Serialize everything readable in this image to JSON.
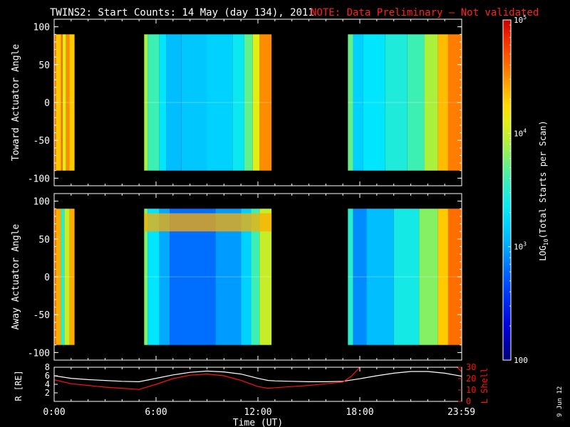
{
  "header": {
    "title": "TWINS2: Start Counts: 14 May (day 134), 2011",
    "note": "NOTE: Data Preliminary — Not validated"
  },
  "footer_date": "9 Jun 12",
  "colors": {
    "background": "#000000",
    "axes": "#ffffff",
    "note": "#ff2020",
    "r_line": "#ffffff",
    "lshell_line": "#ff1010"
  },
  "chart_data": [
    {
      "type": "heatmap",
      "panel": "top",
      "ylabel": "Toward Actuator Angle",
      "xlim": [
        0,
        24
      ],
      "ylim": [
        -110,
        110
      ],
      "yticks": [
        100,
        50,
        0,
        -50,
        -100
      ],
      "data_y_range": [
        -90,
        90
      ],
      "coverage_hours": [
        [
          0.0,
          1.2
        ],
        [
          5.3,
          12.8
        ],
        [
          17.3,
          24.0
        ]
      ],
      "mean_log_counts_by_segment": [
        {
          "start": 0.0,
          "end": 0.1,
          "log": 4.6
        },
        {
          "start": 0.1,
          "end": 0.4,
          "log": 4.3
        },
        {
          "start": 0.4,
          "end": 0.5,
          "log": 4.6
        },
        {
          "start": 0.5,
          "end": 0.7,
          "log": 4.1
        },
        {
          "start": 0.7,
          "end": 0.9,
          "log": 4.5
        },
        {
          "start": 0.9,
          "end": 1.2,
          "log": 4.3
        },
        {
          "start": 5.3,
          "end": 5.5,
          "log": 3.9
        },
        {
          "start": 5.5,
          "end": 6.2,
          "log": 3.6
        },
        {
          "start": 6.2,
          "end": 6.6,
          "log": 3.3
        },
        {
          "start": 6.6,
          "end": 7.5,
          "log": 3.1
        },
        {
          "start": 7.5,
          "end": 9.0,
          "log": 3.15
        },
        {
          "start": 9.0,
          "end": 10.5,
          "log": 3.2
        },
        {
          "start": 10.5,
          "end": 11.2,
          "log": 3.35
        },
        {
          "start": 11.2,
          "end": 11.7,
          "log": 3.7
        },
        {
          "start": 11.7,
          "end": 12.1,
          "log": 4.1
        },
        {
          "start": 12.1,
          "end": 12.8,
          "log": 4.5
        },
        {
          "start": 17.3,
          "end": 17.6,
          "log": 3.7
        },
        {
          "start": 17.6,
          "end": 18.2,
          "log": 3.2
        },
        {
          "start": 18.2,
          "end": 19.5,
          "log": 3.3
        },
        {
          "start": 19.5,
          "end": 20.8,
          "log": 3.45
        },
        {
          "start": 20.8,
          "end": 21.8,
          "log": 3.6
        },
        {
          "start": 21.8,
          "end": 22.6,
          "log": 3.9
        },
        {
          "start": 22.6,
          "end": 23.2,
          "log": 4.35
        },
        {
          "start": 23.2,
          "end": 24.0,
          "log": 4.55
        }
      ]
    },
    {
      "type": "heatmap",
      "panel": "middle",
      "ylabel": "Away Actuator Angle",
      "xlim": [
        0,
        24
      ],
      "ylim": [
        -110,
        110
      ],
      "yticks": [
        100,
        50,
        0,
        -50,
        -100
      ],
      "data_y_range": [
        -90,
        90
      ],
      "coverage_hours": [
        [
          0.0,
          1.2
        ],
        [
          5.3,
          12.8
        ],
        [
          17.3,
          24.0
        ]
      ],
      "mean_log_counts_by_segment": [
        {
          "start": 0.0,
          "end": 0.1,
          "log": 4.6
        },
        {
          "start": 0.1,
          "end": 0.4,
          "log": 4.4
        },
        {
          "start": 0.4,
          "end": 0.6,
          "log": 3.5
        },
        {
          "start": 0.6,
          "end": 0.9,
          "log": 4.0
        },
        {
          "start": 0.9,
          "end": 1.2,
          "log": 4.4
        },
        {
          "start": 5.3,
          "end": 5.5,
          "log": 3.8
        },
        {
          "start": 5.5,
          "end": 6.2,
          "log": 3.3
        },
        {
          "start": 6.2,
          "end": 6.8,
          "log": 3.0
        },
        {
          "start": 6.8,
          "end": 9.5,
          "log": 2.8
        },
        {
          "start": 9.5,
          "end": 11.0,
          "log": 2.95
        },
        {
          "start": 11.0,
          "end": 11.6,
          "log": 3.2
        },
        {
          "start": 11.6,
          "end": 12.1,
          "log": 3.6
        },
        {
          "start": 12.1,
          "end": 12.8,
          "log": 4.0
        },
        {
          "start": 17.3,
          "end": 17.6,
          "log": 3.5
        },
        {
          "start": 17.6,
          "end": 18.4,
          "log": 2.9
        },
        {
          "start": 18.4,
          "end": 20.0,
          "log": 3.1
        },
        {
          "start": 20.0,
          "end": 21.5,
          "log": 3.4
        },
        {
          "start": 21.5,
          "end": 22.6,
          "log": 3.8
        },
        {
          "start": 22.6,
          "end": 23.2,
          "log": 4.3
        },
        {
          "start": 23.2,
          "end": 24.0,
          "log": 4.6
        }
      ],
      "band_enhancement": {
        "y_center": 72,
        "half_width": 12,
        "hours": [
          5.3,
          12.8
        ],
        "peak_log": 4.4
      }
    },
    {
      "type": "line",
      "panel": "bottom",
      "ylabel_left": "R [RE]",
      "ylabel_right": "L Shell",
      "xlabel": "Time (UT)",
      "xlim": [
        0,
        24
      ],
      "ylim_left": [
        0,
        8
      ],
      "ylim_right": [
        0,
        30
      ],
      "yticks_left": [
        8,
        6,
        4,
        2
      ],
      "yticks_right": [
        30,
        20,
        10,
        0
      ],
      "right_tick_labels": [
        "30",
        "20",
        "10",
        "0"
      ],
      "xtick_labels": [
        {
          "h": 0,
          "label": "0:00"
        },
        {
          "h": 6,
          "label": "6:00"
        },
        {
          "h": 12,
          "label": "12:00"
        },
        {
          "h": 18,
          "label": "18:00"
        },
        {
          "h": 23.98,
          "label": "23:59"
        }
      ],
      "series": [
        {
          "name": "R",
          "axis": "left",
          "x": [
            0,
            1,
            2,
            3,
            4,
            5,
            6,
            7,
            8,
            9,
            10,
            11,
            12,
            12.6,
            13,
            14,
            15,
            16,
            17,
            18,
            19,
            20,
            21,
            22,
            23,
            24
          ],
          "y": [
            6.0,
            5.4,
            5.1,
            4.9,
            4.7,
            4.6,
            5.4,
            6.2,
            6.8,
            7.1,
            6.9,
            6.4,
            5.4,
            4.9,
            4.8,
            4.7,
            4.6,
            4.6,
            4.7,
            5.3,
            6.0,
            6.6,
            7.0,
            7.0,
            6.6,
            5.9
          ]
        },
        {
          "name": "L Shell",
          "axis": "right",
          "x": [
            0,
            1,
            2,
            3,
            4,
            5,
            6,
            7,
            8,
            9,
            10,
            11,
            12,
            12.6,
            13,
            14,
            15,
            16,
            17,
            17.5,
            18,
            18.4,
            23.4,
            23.8,
            24
          ],
          "y": [
            19.0,
            15.5,
            14.0,
            12.5,
            11.5,
            10.5,
            15.0,
            20.0,
            23.0,
            24.0,
            22.5,
            18.5,
            13.0,
            11.5,
            12.0,
            13.0,
            14.0,
            15.5,
            17.0,
            22.0,
            30.0,
            34.0,
            34.0,
            29.0,
            26.0
          ]
        }
      ]
    }
  ],
  "colorbar": {
    "label_main": "LOG",
    "label_sub": "10",
    "label_rest": "(Total Starts per Scan)",
    "scale": "log",
    "vmin": 100,
    "vmax": 100000,
    "tick_labels": [
      {
        "value": 5,
        "base": "10",
        "exp": "5"
      },
      {
        "value": 4,
        "base": "10",
        "exp": "4"
      },
      {
        "value": 3,
        "base": "10",
        "exp": "3"
      },
      {
        "value": 2,
        "base": "100",
        "exp": ""
      }
    ]
  }
}
